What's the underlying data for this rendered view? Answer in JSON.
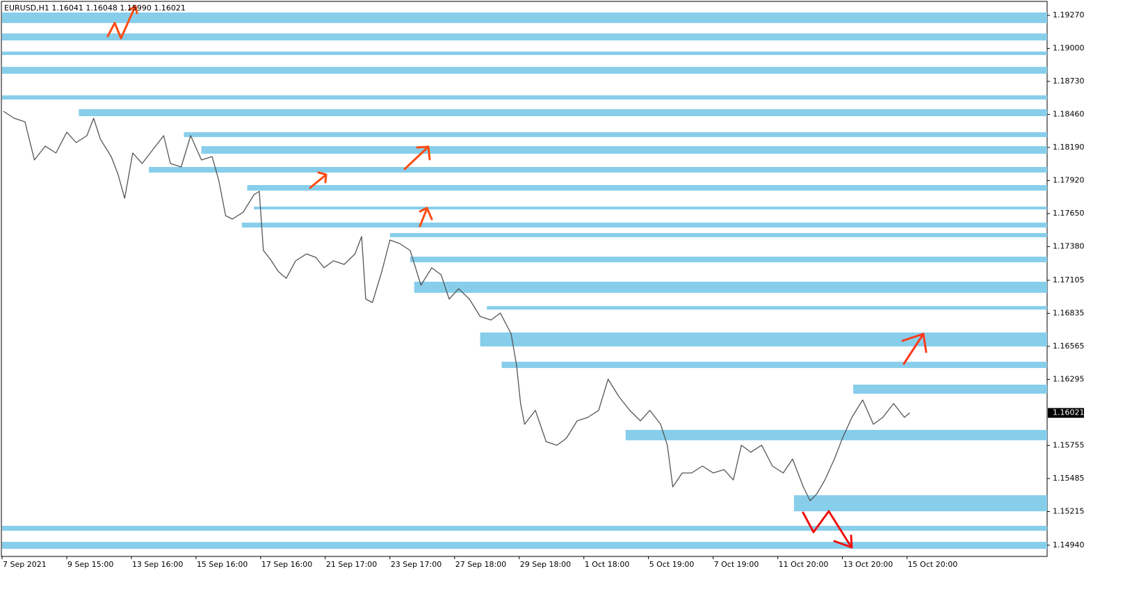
{
  "chart_data": {
    "type": "line",
    "title": "EURUSD,H1  1.16041 1.16048 1.15990 1.16021",
    "color": "#555555",
    "zone_color": "#87ceeb",
    "last_price": 1.16021,
    "xlim": [
      0,
      776
    ],
    "ylim": [
      1.14848,
      1.19384
    ],
    "xticks": [
      {
        "value": 0,
        "label": "7 Sep 2021"
      },
      {
        "value": 48,
        "label": "9 Sep 15:00"
      },
      {
        "value": 96,
        "label": "13 Sep 16:00"
      },
      {
        "value": 144,
        "label": "15 Sep 16:00"
      },
      {
        "value": 192,
        "label": "17 Sep 16:00"
      },
      {
        "value": 240,
        "label": "21 Sep 17:00"
      },
      {
        "value": 288,
        "label": "23 Sep 17:00"
      },
      {
        "value": 336,
        "label": "27 Sep 18:00"
      },
      {
        "value": 384,
        "label": "29 Sep 18:00"
      },
      {
        "value": 432,
        "label": "1 Oct 18:00"
      },
      {
        "value": 480,
        "label": "5 Oct 19:00"
      },
      {
        "value": 528,
        "label": "7 Oct 19:00"
      },
      {
        "value": 576,
        "label": "11 Oct 20:00"
      },
      {
        "value": 624,
        "label": "13 Oct 20:00"
      },
      {
        "value": 672,
        "label": "15 Oct 20:00"
      }
    ],
    "yticks": [
      {
        "value": 1.1927,
        "label": "1.19270"
      },
      {
        "value": 1.19,
        "label": "1.19000"
      },
      {
        "value": 1.1873,
        "label": "1.18730"
      },
      {
        "value": 1.1846,
        "label": "1.18460"
      },
      {
        "value": 1.1819,
        "label": "1.18190"
      },
      {
        "value": 1.1792,
        "label": "1.17920"
      },
      {
        "value": 1.1765,
        "label": "1.17650"
      },
      {
        "value": 1.1738,
        "label": "1.17380"
      },
      {
        "value": 1.17105,
        "label": "1.17105"
      },
      {
        "value": 1.16835,
        "label": "1.16835"
      },
      {
        "value": 1.16565,
        "label": "1.16565"
      },
      {
        "value": 1.16295,
        "label": "1.16295"
      },
      {
        "value": 1.15755,
        "label": "1.15755"
      },
      {
        "value": 1.15485,
        "label": "1.15485"
      },
      {
        "value": 1.15215,
        "label": "1.15215"
      },
      {
        "value": 1.1494,
        "label": "1.14940"
      }
    ],
    "x": [
      1,
      9,
      17,
      24,
      32,
      40,
      48,
      55,
      63,
      68,
      73,
      81,
      86,
      91,
      97,
      104,
      112,
      120,
      125,
      133,
      140,
      148,
      156,
      161,
      166,
      171,
      179,
      187,
      191,
      194,
      200,
      205,
      211,
      218,
      226,
      233,
      239,
      246,
      254,
      262,
      267,
      270,
      275,
      282,
      288,
      295,
      303,
      311,
      319,
      326,
      332,
      339,
      347,
      355,
      363,
      370,
      378,
      382,
      385,
      388,
      396,
      404,
      412,
      419,
      427,
      435,
      443,
      450,
      458,
      466,
      474,
      481,
      489,
      494,
      498,
      505,
      512,
      520,
      528,
      536,
      543,
      549,
      556,
      564,
      572,
      580,
      587,
      595,
      600,
      605,
      611,
      618,
      624,
      631,
      639,
      647,
      654,
      662,
      670,
      674
    ],
    "values": [
      1.18486,
      1.18429,
      1.184,
      1.18088,
      1.18201,
      1.18145,
      1.18315,
      1.1823,
      1.18287,
      1.18429,
      1.18258,
      1.18116,
      1.17974,
      1.17775,
      1.18145,
      1.18059,
      1.18173,
      1.18287,
      1.18059,
      1.18031,
      1.18287,
      1.18088,
      1.18116,
      1.17917,
      1.17633,
      1.17605,
      1.17661,
      1.17804,
      1.17832,
      1.17349,
      1.17264,
      1.17178,
      1.17121,
      1.17264,
      1.1732,
      1.17292,
      1.17207,
      1.17264,
      1.17235,
      1.1732,
      1.17463,
      1.16951,
      1.16923,
      1.17178,
      1.17434,
      1.17406,
      1.17349,
      1.17065,
      1.17207,
      1.1715,
      1.16951,
      1.17036,
      1.16951,
      1.16809,
      1.1678,
      1.16837,
      1.16667,
      1.16411,
      1.16098,
      1.15928,
      1.16042,
      1.15786,
      1.15757,
      1.15814,
      1.15956,
      1.15985,
      1.16042,
      1.16297,
      1.16155,
      1.16042,
      1.15956,
      1.16042,
      1.15928,
      1.15757,
      1.15416,
      1.1553,
      1.1553,
      1.15587,
      1.1553,
      1.15558,
      1.15473,
      1.15757,
      1.157,
      1.15757,
      1.15587,
      1.1553,
      1.15644,
      1.15416,
      1.15303,
      1.15359,
      1.15473,
      1.15644,
      1.15814,
      1.15985,
      1.16127,
      1.15928,
      1.15985,
      1.16098,
      1.15985,
      1.16021
    ],
    "zones": [
      {
        "top": 1.19293,
        "bottom": 1.19207,
        "start": 0
      },
      {
        "top": 1.19122,
        "bottom": 1.19065,
        "start": 0
      },
      {
        "top": 1.18974,
        "bottom": 1.18946,
        "start": 0
      },
      {
        "top": 1.18849,
        "bottom": 1.18793,
        "start": 0
      },
      {
        "top": 1.18616,
        "bottom": 1.18582,
        "start": 0
      },
      {
        "top": 1.18503,
        "bottom": 1.18446,
        "start": 57
      },
      {
        "top": 1.18315,
        "bottom": 1.18275,
        "start": 135
      },
      {
        "top": 1.18201,
        "bottom": 1.18139,
        "start": 148
      },
      {
        "top": 1.18031,
        "bottom": 1.17985,
        "start": 109
      },
      {
        "top": 1.17883,
        "bottom": 1.17838,
        "start": 182
      },
      {
        "top": 1.17707,
        "bottom": 1.17684,
        "start": 187
      },
      {
        "top": 1.17576,
        "bottom": 1.17536,
        "start": 178
      },
      {
        "top": 1.17491,
        "bottom": 1.17457,
        "start": 288
      },
      {
        "top": 1.17298,
        "bottom": 1.17252,
        "start": 303
      },
      {
        "top": 1.17093,
        "bottom": 1.17002,
        "start": 306
      },
      {
        "top": 1.16894,
        "bottom": 1.16866,
        "start": 360
      },
      {
        "top": 1.16678,
        "bottom": 1.16564,
        "start": 355
      },
      {
        "top": 1.16439,
        "bottom": 1.16388,
        "start": 371
      },
      {
        "top": 1.16252,
        "bottom": 1.16178,
        "start": 632
      },
      {
        "top": 1.15882,
        "bottom": 1.15797,
        "start": 463
      },
      {
        "top": 1.15348,
        "bottom": 1.15217,
        "start": 588
      },
      {
        "top": 1.15098,
        "bottom": 1.15058,
        "start": 0
      },
      {
        "top": 1.14967,
        "bottom": 1.1491,
        "start": 0
      }
    ]
  }
}
